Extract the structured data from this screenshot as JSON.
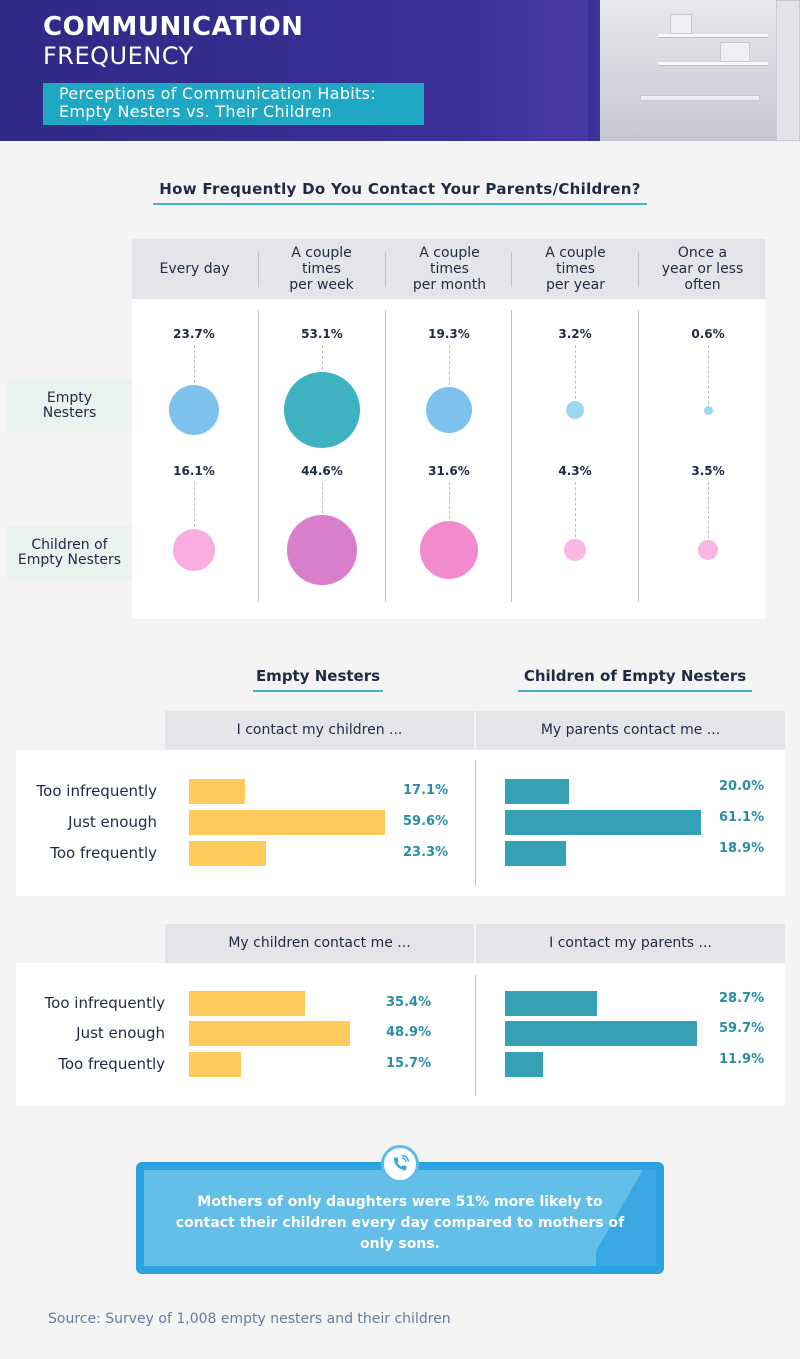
{
  "header": {
    "title_line1": "COMMUNICATION",
    "title_line2": "FREQUENCY",
    "subtitle_line1": "Perceptions of Communication Habits:",
    "subtitle_line2": "Empty Nesters vs. Their Children"
  },
  "section1": {
    "title": "How Frequently Do You Contact Your Parents/Children?",
    "columns": [
      [
        "Every day"
      ],
      [
        "A couple",
        "times",
        "per week"
      ],
      [
        "A couple",
        "times",
        "per month"
      ],
      [
        "A couple",
        "times",
        "per year"
      ],
      [
        "Once a",
        "year or less",
        "often"
      ]
    ],
    "rows": [
      {
        "label_lines": [
          "Empty",
          "Nesters"
        ],
        "values": [
          "23.7%",
          "53.1%",
          "19.3%",
          "3.2%",
          "0.6%"
        ]
      },
      {
        "label_lines": [
          "Children of",
          "Empty Nesters"
        ],
        "values": [
          "16.1%",
          "44.6%",
          "31.6%",
          "4.3%",
          "3.5%"
        ]
      }
    ]
  },
  "section2": {
    "left_title": "Empty Nesters",
    "right_title": "Children of Empty Nesters",
    "block1": {
      "left_question": "I contact my children ...",
      "right_question": "My parents contact me ...",
      "labels": [
        "Too infrequently",
        "Just enough",
        "Too frequently"
      ],
      "left_values": [
        "17.1%",
        "59.6%",
        "23.3%"
      ],
      "right_values": [
        "20.0%",
        "61.1%",
        "18.9%"
      ]
    },
    "block2": {
      "left_question": "My children contact me ...",
      "right_question": "I contact my parents ...",
      "labels": [
        "Too infrequently",
        "Just enough",
        "Too frequently"
      ],
      "left_values": [
        "35.4%",
        "48.9%",
        "15.7%"
      ],
      "right_values": [
        "28.7%",
        "59.7%",
        "11.9%"
      ]
    }
  },
  "callout": {
    "text": "Mothers of only daughters were 51% more likely to contact their children every day compared to mothers of only sons.",
    "icon": "phone-icon"
  },
  "source": "Source: Survey of 1,008 empty nesters and their children",
  "colors": {
    "header_bg": "#2f2c86",
    "accent_teal": "#1fa8c3",
    "empty_nesters_bubble": "#7cc2ec",
    "empty_nesters_bubble_max": "#3fb2c2",
    "children_bubble": "#f9aee0",
    "children_bubble_mid": "#f28bcd",
    "children_bubble_max": "#d97ecb",
    "bar_empty_nesters": "#ffcb5c",
    "bar_children": "#35a1b5",
    "callout_bg": "#64bfe8"
  },
  "chart_data": [
    {
      "type": "scatter",
      "title": "How Frequently Do You Contact Your Parents/Children?",
      "categories": [
        "Every day",
        "A couple times per week",
        "A couple times per month",
        "A couple times per year",
        "Once a year or less often"
      ],
      "series": [
        {
          "name": "Empty Nesters",
          "values": [
            23.7,
            53.1,
            19.3,
            3.2,
            0.6
          ]
        },
        {
          "name": "Children of Empty Nesters",
          "values": [
            16.1,
            44.6,
            31.6,
            4.3,
            3.5
          ]
        }
      ]
    },
    {
      "type": "bar",
      "categories": [
        "Too infrequently",
        "Just enough",
        "Too frequently"
      ],
      "series": [
        {
          "name": "I contact my children ...",
          "values": [
            17.1,
            59.6,
            23.3
          ]
        },
        {
          "name": "My parents contact me ...",
          "values": [
            20.0,
            61.1,
            18.9
          ]
        }
      ]
    },
    {
      "type": "bar",
      "categories": [
        "Too infrequently",
        "Just enough",
        "Too frequently"
      ],
      "series": [
        {
          "name": "My children contact me ...",
          "values": [
            35.4,
            48.9,
            15.7
          ]
        },
        {
          "name": "I contact my parents ...",
          "values": [
            28.7,
            59.7,
            11.9
          ]
        }
      ]
    }
  ]
}
